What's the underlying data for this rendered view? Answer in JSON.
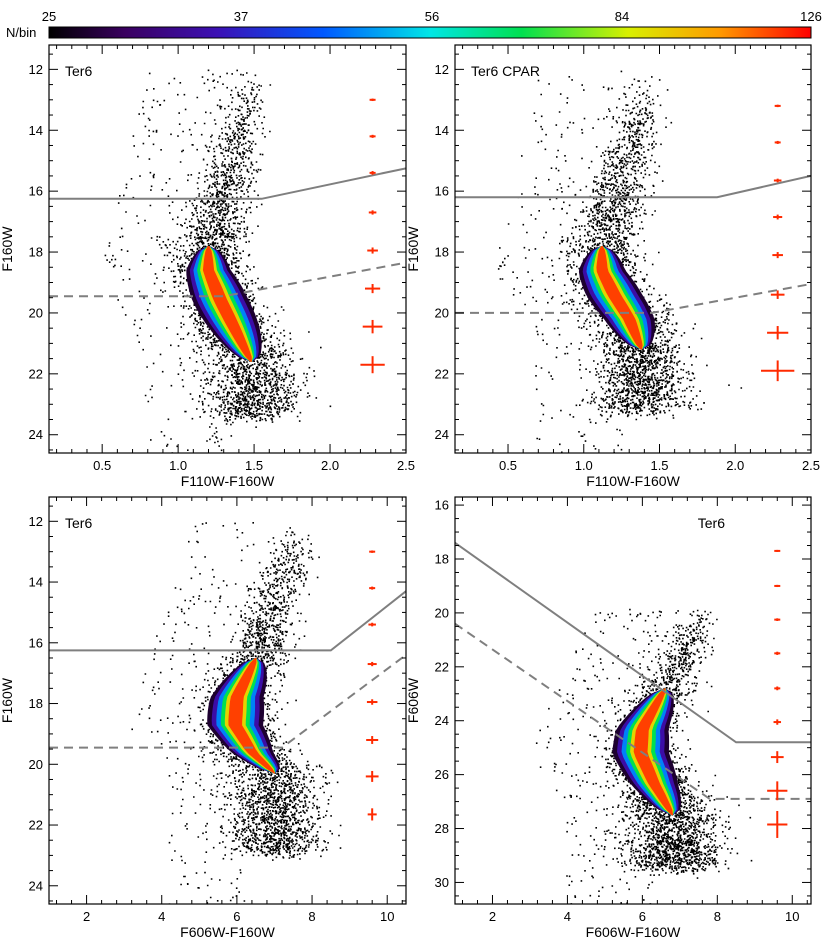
{
  "colorbar": {
    "label": "N/bin",
    "ticks": [
      25,
      37,
      56,
      84,
      126
    ]
  },
  "chart_data": [
    {
      "type": "scatter",
      "title": "Ter6",
      "xlabel": "F110W-F160W",
      "ylabel": "F160W",
      "xlim": [
        0.15,
        2.5
      ],
      "ylim": [
        24.6,
        11.2
      ],
      "xticks": [
        0.5,
        1.0,
        1.5,
        2.0,
        2.5
      ],
      "yticks": [
        12,
        14,
        16,
        18,
        20,
        22,
        24
      ],
      "solid_line": [
        [
          0.15,
          16.25
        ],
        [
          1.55,
          16.25
        ],
        [
          2.5,
          15.25
        ]
      ],
      "dashed_line": [
        [
          0.15,
          19.45
        ],
        [
          1.3,
          19.45
        ],
        [
          2.5,
          18.35
        ]
      ],
      "ridge": [
        [
          1.48,
          12.0
        ],
        [
          1.42,
          13.5
        ],
        [
          1.35,
          15.0
        ],
        [
          1.27,
          16.5
        ],
        [
          1.2,
          17.8
        ],
        [
          1.2,
          18.6
        ],
        [
          1.28,
          19.6
        ],
        [
          1.38,
          20.6
        ],
        [
          1.48,
          21.6
        ]
      ],
      "error_bars": [
        {
          "x": 2.28,
          "y": 13.0,
          "dx": 0.01,
          "dy": 0.04
        },
        {
          "x": 2.28,
          "y": 14.2,
          "dx": 0.015,
          "dy": 0.05
        },
        {
          "x": 2.28,
          "y": 15.4,
          "dx": 0.02,
          "dy": 0.06
        },
        {
          "x": 2.28,
          "y": 16.7,
          "dx": 0.025,
          "dy": 0.07
        },
        {
          "x": 2.28,
          "y": 17.95,
          "dx": 0.035,
          "dy": 0.1
        },
        {
          "x": 2.28,
          "y": 19.2,
          "dx": 0.05,
          "dy": 0.15
        },
        {
          "x": 2.28,
          "y": 20.45,
          "dx": 0.065,
          "dy": 0.22
        },
        {
          "x": 2.28,
          "y": 21.7,
          "dx": 0.08,
          "dy": 0.28
        }
      ]
    },
    {
      "type": "scatter",
      "title": "Ter6 CPAR",
      "xlabel": "F110W-F160W",
      "ylabel": "F160W",
      "xlim": [
        0.15,
        2.5
      ],
      "ylim": [
        24.6,
        11.2
      ],
      "xticks": [
        0.5,
        1.0,
        1.5,
        2.0,
        2.5
      ],
      "yticks": [
        12,
        14,
        16,
        18,
        20,
        22,
        24
      ],
      "solid_line": [
        [
          0.15,
          16.2
        ],
        [
          1.88,
          16.2
        ],
        [
          2.5,
          15.5
        ]
      ],
      "dashed_line": [
        [
          0.15,
          20.0
        ],
        [
          1.45,
          20.0
        ],
        [
          2.5,
          19.05
        ]
      ],
      "ridge": [
        [
          1.4,
          12.2
        ],
        [
          1.36,
          13.5
        ],
        [
          1.28,
          15.0
        ],
        [
          1.2,
          16.5
        ],
        [
          1.12,
          17.8
        ],
        [
          1.12,
          18.6
        ],
        [
          1.2,
          19.4
        ],
        [
          1.3,
          20.2
        ],
        [
          1.38,
          21.2
        ]
      ],
      "error_bars": [
        {
          "x": 2.28,
          "y": 13.2,
          "dx": 0.01,
          "dy": 0.04
        },
        {
          "x": 2.28,
          "y": 14.4,
          "dx": 0.015,
          "dy": 0.05
        },
        {
          "x": 2.28,
          "y": 15.65,
          "dx": 0.025,
          "dy": 0.06
        },
        {
          "x": 2.28,
          "y": 16.85,
          "dx": 0.03,
          "dy": 0.08
        },
        {
          "x": 2.28,
          "y": 18.1,
          "dx": 0.035,
          "dy": 0.1
        },
        {
          "x": 2.28,
          "y": 19.4,
          "dx": 0.045,
          "dy": 0.14
        },
        {
          "x": 2.28,
          "y": 20.65,
          "dx": 0.07,
          "dy": 0.22
        },
        {
          "x": 2.28,
          "y": 21.9,
          "dx": 0.11,
          "dy": 0.34
        }
      ]
    },
    {
      "type": "scatter",
      "title": "Ter6",
      "xlabel": "F606W-F160W",
      "ylabel": "F160W",
      "xlim": [
        1.0,
        10.5
      ],
      "ylim": [
        24.6,
        11.2
      ],
      "xticks": [
        2,
        4,
        6,
        8,
        10
      ],
      "yticks": [
        12,
        14,
        16,
        18,
        20,
        22,
        24
      ],
      "solid_line": [
        [
          1.0,
          16.25
        ],
        [
          8.5,
          16.25
        ],
        [
          10.5,
          14.3
        ]
      ],
      "dashed_line": [
        [
          1.0,
          19.45
        ],
        [
          7.2,
          19.45
        ],
        [
          10.5,
          16.4
        ]
      ],
      "ridge": [
        [
          7.6,
          12.0
        ],
        [
          7.3,
          13.5
        ],
        [
          6.9,
          15.0
        ],
        [
          6.5,
          16.5
        ],
        [
          6.0,
          17.8
        ],
        [
          5.95,
          18.7
        ],
        [
          6.4,
          19.6
        ],
        [
          7.0,
          20.3
        ]
      ],
      "error_bars": [
        {
          "x": 9.6,
          "y": 13.0,
          "dx": 0.05,
          "dy": 0.04
        },
        {
          "x": 9.6,
          "y": 14.2,
          "dx": 0.07,
          "dy": 0.05
        },
        {
          "x": 9.6,
          "y": 15.4,
          "dx": 0.1,
          "dy": 0.06
        },
        {
          "x": 9.6,
          "y": 16.7,
          "dx": 0.12,
          "dy": 0.07
        },
        {
          "x": 9.6,
          "y": 17.95,
          "dx": 0.14,
          "dy": 0.09
        },
        {
          "x": 9.6,
          "y": 19.2,
          "dx": 0.16,
          "dy": 0.13
        },
        {
          "x": 9.6,
          "y": 20.4,
          "dx": 0.17,
          "dy": 0.18
        },
        {
          "x": 9.6,
          "y": 21.65,
          "dx": 0.12,
          "dy": 0.2
        }
      ]
    },
    {
      "type": "scatter",
      "title": "Ter6",
      "xlabel": "F606W-F160W",
      "ylabel": "F606W",
      "xlim": [
        1.0,
        10.5
      ],
      "ylim": [
        30.8,
        15.7
      ],
      "xticks": [
        2,
        4,
        6,
        8,
        10
      ],
      "yticks": [
        16,
        18,
        20,
        22,
        24,
        26,
        28,
        30
      ],
      "solid_line": [
        [
          1.0,
          17.4
        ],
        [
          8.5,
          24.8
        ],
        [
          10.5,
          24.8
        ]
      ],
      "dashed_line": [
        [
          1.0,
          20.4
        ],
        [
          7.8,
          26.9
        ],
        [
          10.5,
          26.9
        ]
      ],
      "ridge": [
        [
          7.6,
          19.8
        ],
        [
          7.1,
          21.2
        ],
        [
          6.6,
          22.8
        ],
        [
          6.0,
          24.3
        ],
        [
          5.95,
          25.2
        ],
        [
          6.3,
          26.3
        ],
        [
          6.8,
          27.5
        ]
      ],
      "error_bars": [
        {
          "x": 9.6,
          "y": 17.7,
          "dx": 0.03,
          "dy": 0.03
        },
        {
          "x": 9.6,
          "y": 19.0,
          "dx": 0.04,
          "dy": 0.04
        },
        {
          "x": 9.6,
          "y": 20.25,
          "dx": 0.05,
          "dy": 0.05
        },
        {
          "x": 9.6,
          "y": 21.5,
          "dx": 0.06,
          "dy": 0.06
        },
        {
          "x": 9.6,
          "y": 22.8,
          "dx": 0.08,
          "dy": 0.07
        },
        {
          "x": 9.6,
          "y": 24.05,
          "dx": 0.1,
          "dy": 0.1
        },
        {
          "x": 9.6,
          "y": 25.35,
          "dx": 0.17,
          "dy": 0.22
        },
        {
          "x": 9.6,
          "y": 26.6,
          "dx": 0.27,
          "dy": 0.35
        },
        {
          "x": 9.6,
          "y": 27.85,
          "dx": 0.27,
          "dy": 0.5
        }
      ]
    }
  ]
}
